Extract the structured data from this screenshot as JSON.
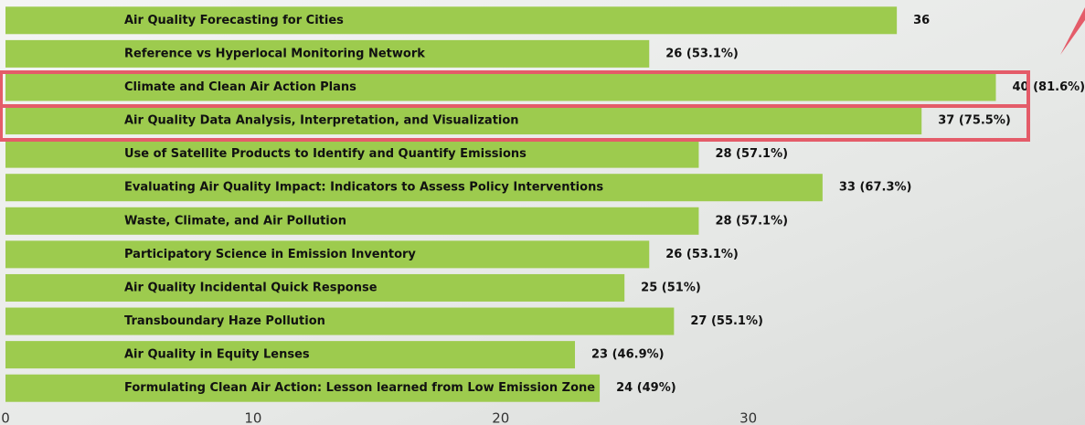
{
  "chart_data": {
    "type": "bar",
    "orientation": "horizontal",
    "categories": [
      "Air Quality Forecasting for Cities",
      "Reference vs Hyperlocal Monitoring Network",
      "Climate and Clean Air Action Plans",
      "Air Quality Data Analysis, Interpretation, and Visualization",
      "Use of Satellite Products to Identify and Quantify Emissions",
      "Evaluating Air Quality Impact: Indicators to Assess Policy Interventions",
      "Waste, Climate, and Air Pollution",
      "Participatory Science in Emission Inventory",
      "Air Quality Incidental Quick Response",
      "Transboundary Haze Pollution",
      "Air Quality in Equity Lenses",
      "Formulating Clean Air Action: Lesson learned from Low Emission Zone"
    ],
    "values": [
      36,
      26,
      40,
      37,
      28,
      33,
      28,
      26,
      25,
      27,
      23,
      24
    ],
    "value_labels": [
      "36",
      "26 (53.1%)",
      "40 (81.6%)",
      "37 (75.5%)",
      "28 (57.1%)",
      "33 (67.3%)",
      "28 (57.1%)",
      "26 (53.1%)",
      "25 (51%)",
      "27 (55.1%)",
      "23 (46.9%)",
      "24 (49%)"
    ],
    "color": "#9dcb4e",
    "xlim": [
      0,
      43.6
    ],
    "xticks": [
      0,
      10,
      20,
      30
    ],
    "grid": false
  }
}
